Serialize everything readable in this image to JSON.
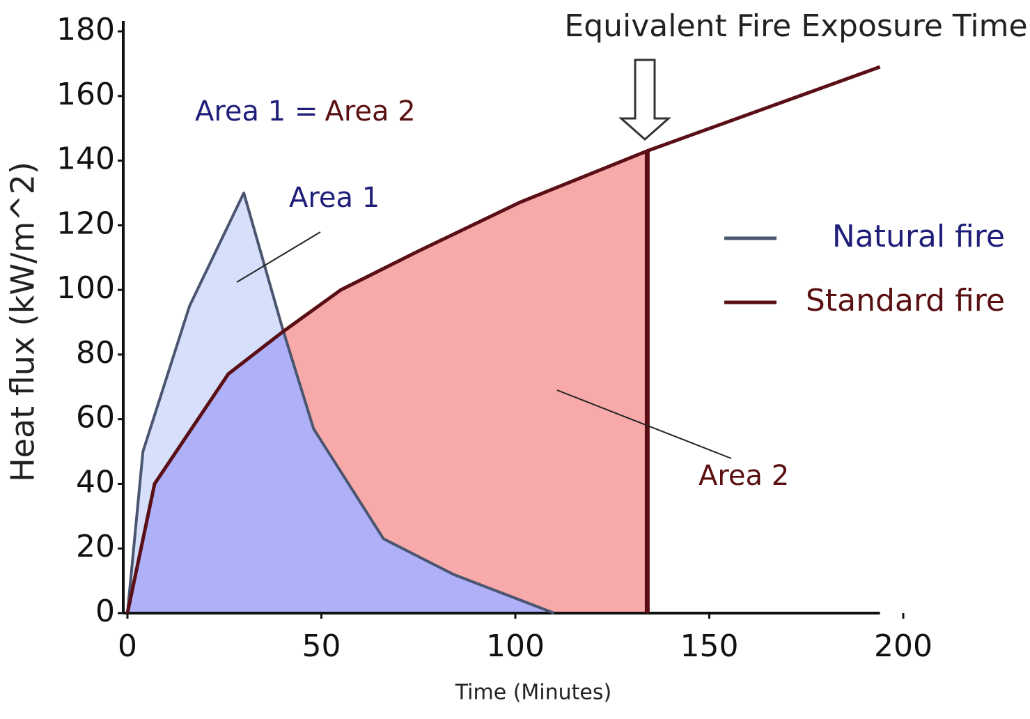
{
  "chart_data": {
    "type": "line",
    "xlabel": "Time (Minutes)",
    "ylabel": "Heat flux (kW/m^2)",
    "xlim": [
      0,
      200
    ],
    "ylim": [
      0,
      180
    ],
    "xticks": [
      0,
      50,
      100,
      150,
      200
    ],
    "yticks": [
      0,
      20,
      40,
      60,
      80,
      100,
      120,
      140,
      160,
      180
    ],
    "legend": "right",
    "series": [
      {
        "name": "Natural fire",
        "color": "#4a5670",
        "fill": "#d6e0fb",
        "label_color": "#1f1f7a",
        "x": [
          0,
          4,
          16,
          30,
          40,
          48,
          66,
          84,
          110
        ],
        "values": [
          0,
          50,
          95,
          130,
          88,
          57,
          23,
          12,
          0
        ]
      },
      {
        "name": "Standard fire",
        "color": "#5a0f17",
        "fill": "#f8a9a9",
        "label_color": "#5a1010",
        "x": [
          0,
          7,
          26,
          40,
          55,
          75,
          101,
          134,
          194
        ],
        "values": [
          0,
          40,
          74,
          87,
          100,
          112,
          127,
          143,
          169
        ]
      }
    ],
    "overlap_fill": "#aeb0f8",
    "equivalent_time": 134,
    "annotations": {
      "equivalent": "Equivalent Fire Exposure Time",
      "equation_left": "Area 1 =",
      "equation_right": "Area 2",
      "area1": "Area 1",
      "area2": "Area 2"
    }
  }
}
